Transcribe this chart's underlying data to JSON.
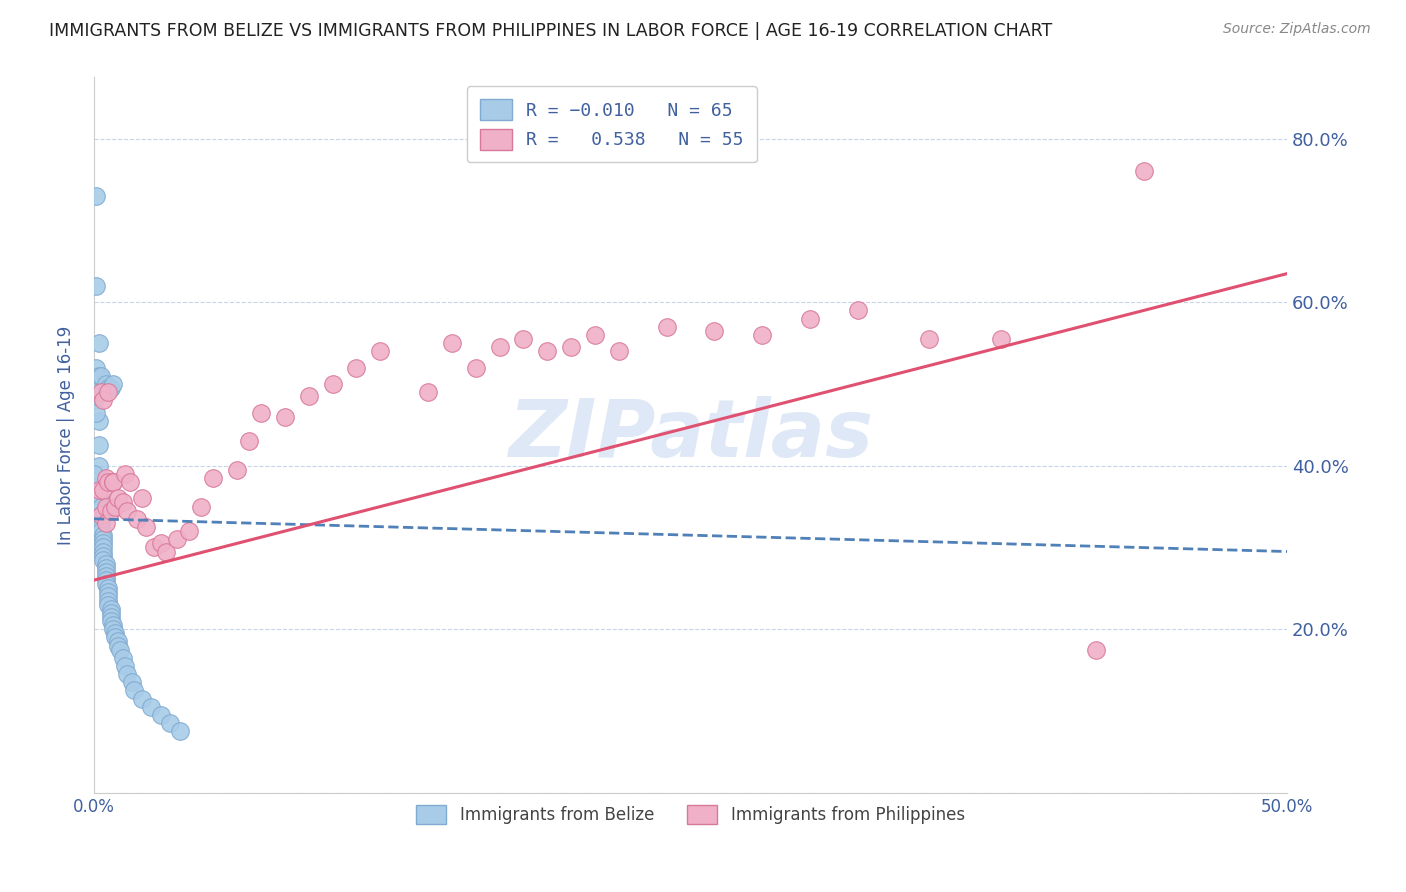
{
  "title": "IMMIGRANTS FROM BELIZE VS IMMIGRANTS FROM PHILIPPINES IN LABOR FORCE | AGE 16-19 CORRELATION CHART",
  "source": "Source: ZipAtlas.com",
  "ylabel": "In Labor Force | Age 16-19",
  "watermark": "ZIPatlas",
  "xlim": [
    0.0,
    0.5
  ],
  "ylim": [
    0.0,
    0.875
  ],
  "ytick_right_vals": [
    0.2,
    0.4,
    0.6,
    0.8
  ],
  "ytick_right_labels": [
    "20.0%",
    "40.0%",
    "60.0%",
    "80.0%"
  ],
  "belize_color": "#a8cce8",
  "belize_edge": "#80aad0",
  "philippines_color": "#f0b0c8",
  "philippines_edge": "#d87898",
  "trend_belize_color": "#5080b8",
  "trend_philippines_color": "#e05070",
  "background_color": "#ffffff",
  "grid_color": "#c8d4e8",
  "title_color": "#222222",
  "source_color": "#888888",
  "axis_label_color": "#4060a0",
  "tick_color": "#4060a0",
  "belize_points_x": [
    0.001,
    0.001,
    0.002,
    0.002,
    0.002,
    0.002,
    0.002,
    0.002,
    0.003,
    0.003,
    0.003,
    0.003,
    0.003,
    0.003,
    0.003,
    0.004,
    0.004,
    0.004,
    0.004,
    0.004,
    0.004,
    0.004,
    0.005,
    0.005,
    0.005,
    0.005,
    0.005,
    0.005,
    0.006,
    0.006,
    0.006,
    0.006,
    0.006,
    0.007,
    0.007,
    0.007,
    0.007,
    0.008,
    0.008,
    0.009,
    0.009,
    0.01,
    0.01,
    0.011,
    0.012,
    0.013,
    0.014,
    0.016,
    0.017,
    0.02,
    0.024,
    0.028,
    0.032,
    0.036,
    0.0,
    0.0,
    0.001,
    0.001,
    0.002,
    0.003,
    0.004,
    0.005,
    0.006,
    0.007,
    0.008
  ],
  "belize_points_y": [
    0.73,
    0.62,
    0.55,
    0.495,
    0.455,
    0.425,
    0.4,
    0.375,
    0.36,
    0.35,
    0.34,
    0.335,
    0.33,
    0.325,
    0.32,
    0.315,
    0.31,
    0.305,
    0.3,
    0.295,
    0.29,
    0.285,
    0.28,
    0.275,
    0.27,
    0.265,
    0.26,
    0.255,
    0.25,
    0.245,
    0.24,
    0.235,
    0.23,
    0.225,
    0.22,
    0.215,
    0.21,
    0.205,
    0.2,
    0.195,
    0.19,
    0.185,
    0.18,
    0.175,
    0.165,
    0.155,
    0.145,
    0.135,
    0.125,
    0.115,
    0.105,
    0.095,
    0.085,
    0.075,
    0.48,
    0.39,
    0.52,
    0.465,
    0.51,
    0.51,
    0.49,
    0.5,
    0.495,
    0.495,
    0.5
  ],
  "philippines_points_x": [
    0.002,
    0.003,
    0.003,
    0.004,
    0.004,
    0.005,
    0.005,
    0.005,
    0.006,
    0.006,
    0.007,
    0.008,
    0.008,
    0.009,
    0.01,
    0.012,
    0.013,
    0.014,
    0.015,
    0.018,
    0.02,
    0.022,
    0.025,
    0.028,
    0.03,
    0.035,
    0.04,
    0.045,
    0.05,
    0.06,
    0.065,
    0.07,
    0.08,
    0.09,
    0.1,
    0.11,
    0.12,
    0.14,
    0.15,
    0.16,
    0.17,
    0.18,
    0.19,
    0.2,
    0.21,
    0.22,
    0.24,
    0.26,
    0.28,
    0.3,
    0.32,
    0.35,
    0.38,
    0.42,
    0.44
  ],
  "philippines_points_y": [
    0.37,
    0.34,
    0.49,
    0.37,
    0.48,
    0.385,
    0.35,
    0.33,
    0.38,
    0.49,
    0.345,
    0.38,
    0.38,
    0.35,
    0.36,
    0.355,
    0.39,
    0.345,
    0.38,
    0.335,
    0.36,
    0.325,
    0.3,
    0.305,
    0.295,
    0.31,
    0.32,
    0.35,
    0.385,
    0.395,
    0.43,
    0.465,
    0.46,
    0.485,
    0.5,
    0.52,
    0.54,
    0.49,
    0.55,
    0.52,
    0.545,
    0.555,
    0.54,
    0.545,
    0.56,
    0.54,
    0.57,
    0.565,
    0.56,
    0.58,
    0.59,
    0.555,
    0.555,
    0.175,
    0.76
  ]
}
